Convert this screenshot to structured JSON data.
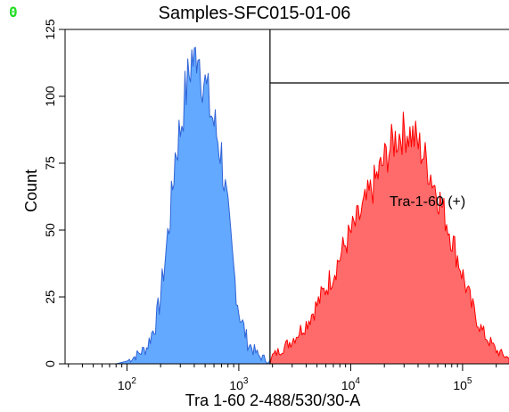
{
  "panel_label": "0",
  "colors": {
    "control_fill": "#63a9ff",
    "control_edge": "#2f63d6",
    "positive_fill": "#ff6b6b",
    "positive_edge": "#ff0000",
    "gate_line": "#000000"
  },
  "chart_data": {
    "type": "area",
    "title": "Samples-SFC015-01-06",
    "xlabel": "Tra 1-60 2-488/530/30-A",
    "ylabel": "Count",
    "xscale": "log",
    "xlim": [
      28,
      260000
    ],
    "ylim": [
      0,
      125
    ],
    "x_ticks": [
      {
        "value": 100,
        "base": "10",
        "exp": "2"
      },
      {
        "value": 1000,
        "base": "10",
        "exp": "3"
      },
      {
        "value": 10000,
        "base": "10",
        "exp": "4"
      },
      {
        "value": 100000,
        "base": "10",
        "exp": "5"
      }
    ],
    "y_ticks": [
      0,
      25,
      50,
      75,
      100,
      125
    ],
    "series": [
      {
        "role": "control",
        "points": [
          [
            28,
            0
          ],
          [
            80,
            0
          ],
          [
            100,
            1
          ],
          [
            120,
            3
          ],
          [
            150,
            6
          ],
          [
            180,
            15
          ],
          [
            200,
            25
          ],
          [
            220,
            40
          ],
          [
            250,
            60
          ],
          [
            270,
            78
          ],
          [
            300,
            88
          ],
          [
            330,
            100
          ],
          [
            360,
            108
          ],
          [
            380,
            115
          ],
          [
            400,
            112
          ],
          [
            430,
            120
          ],
          [
            460,
            110
          ],
          [
            500,
            104
          ],
          [
            550,
            96
          ],
          [
            600,
            90
          ],
          [
            700,
            78
          ],
          [
            800,
            55
          ],
          [
            900,
            35
          ],
          [
            1000,
            20
          ],
          [
            1200,
            8
          ],
          [
            1500,
            3
          ],
          [
            2000,
            0.5
          ]
        ]
      },
      {
        "role": "positive",
        "points": [
          [
            1900,
            0
          ],
          [
            2000,
            3
          ],
          [
            2500,
            6
          ],
          [
            3000,
            9
          ],
          [
            4000,
            15
          ],
          [
            5000,
            22
          ],
          [
            7000,
            34
          ],
          [
            9000,
            45
          ],
          [
            12000,
            55
          ],
          [
            15000,
            64
          ],
          [
            19000,
            74
          ],
          [
            22000,
            80
          ],
          [
            25000,
            84
          ],
          [
            28000,
            86
          ],
          [
            32000,
            87
          ],
          [
            38000,
            84
          ],
          [
            45000,
            78
          ],
          [
            55000,
            68
          ],
          [
            70000,
            55
          ],
          [
            90000,
            40
          ],
          [
            120000,
            22
          ],
          [
            150000,
            12
          ],
          [
            200000,
            5
          ],
          [
            260000,
            2
          ]
        ]
      }
    ],
    "gate": {
      "label": "Tra-1-60 (+)",
      "x_start": 1900,
      "x_end": 260000,
      "y_top": 105
    },
    "grid": false,
    "legend": "none"
  }
}
